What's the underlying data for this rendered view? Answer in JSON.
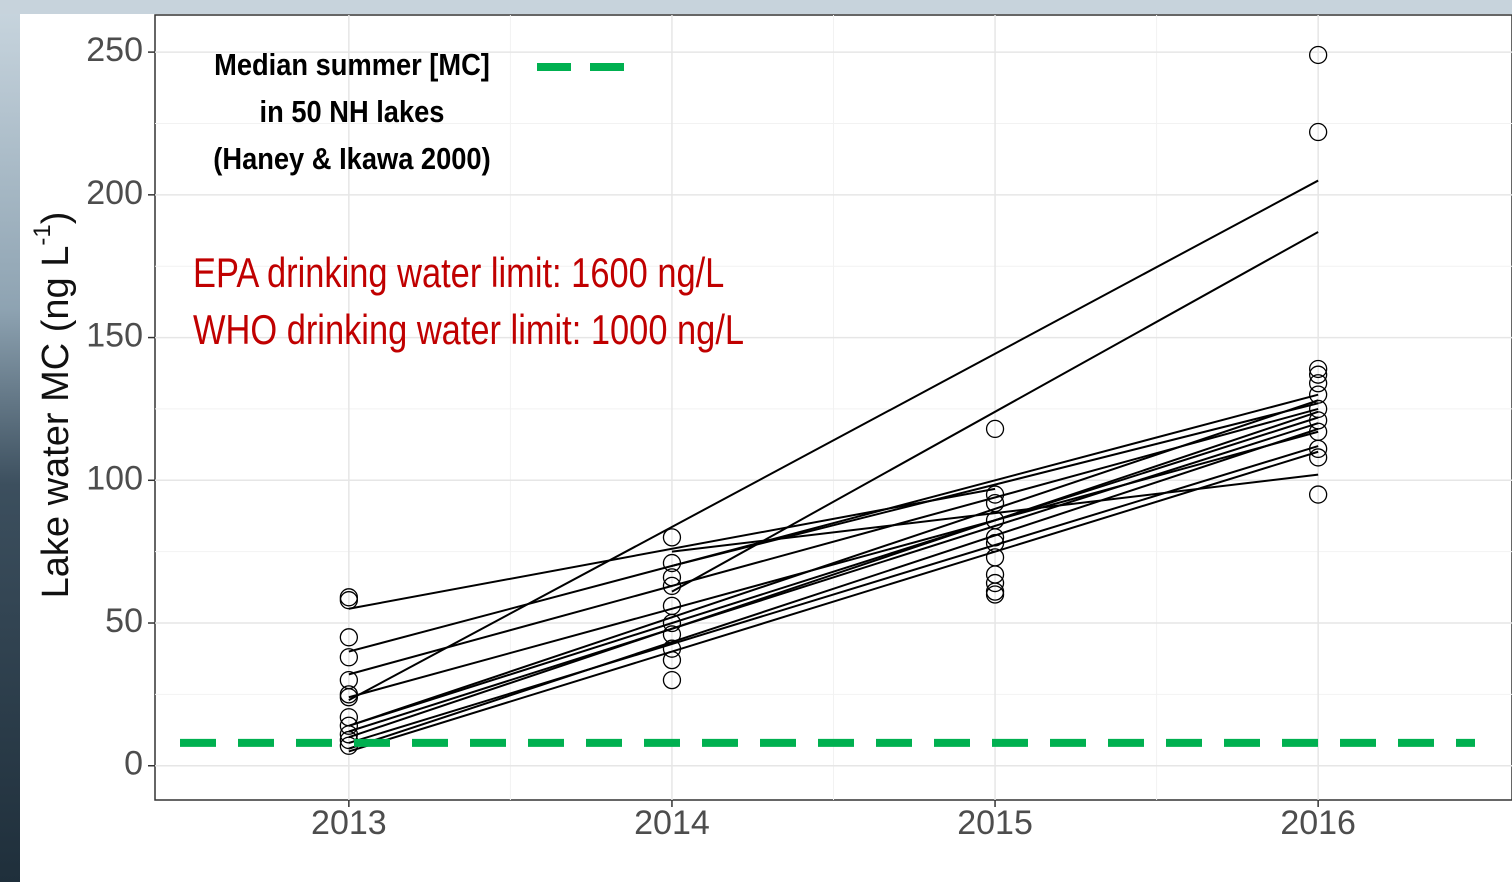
{
  "chart_data": {
    "type": "scatter",
    "y_label": {
      "text": "Lake water MC (ng L",
      "superscript": "-1",
      "close": ")"
    },
    "xlim": [
      2012.4,
      2016.6
    ],
    "ylim": [
      -12,
      263
    ],
    "xticks": [
      2013,
      2014,
      2015,
      2016
    ],
    "yticks": [
      0,
      50,
      100,
      150,
      200,
      250
    ],
    "grid": true,
    "minor_grid": true,
    "points": {
      "color": "#000000",
      "x": [
        2013,
        2013,
        2013,
        2013,
        2013,
        2013,
        2013,
        2013,
        2013,
        2013,
        2013,
        2013,
        2014,
        2014,
        2014,
        2014,
        2014,
        2014,
        2014,
        2014,
        2014,
        2014,
        2015,
        2015,
        2015,
        2015,
        2015,
        2015,
        2015,
        2015,
        2015,
        2015,
        2015,
        2016,
        2016,
        2016,
        2016,
        2016,
        2016,
        2016,
        2016,
        2016,
        2016,
        2016,
        2016
      ],
      "values": [
        59,
        58,
        45,
        38,
        30,
        25,
        24,
        17,
        14,
        11,
        9,
        7,
        80,
        71,
        66,
        63,
        56,
        50,
        46,
        41,
        37,
        30,
        118,
        95,
        92,
        86,
        80,
        78,
        73,
        67,
        64,
        61,
        60,
        249,
        222,
        139,
        137,
        134,
        130,
        125,
        121,
        117,
        111,
        108,
        95
      ]
    },
    "fit_lines": [
      {
        "x": [
          2013,
          2016
        ],
        "values": [
          23,
          205
        ]
      },
      {
        "x": [
          2014,
          2016
        ],
        "values": [
          61,
          187
        ]
      },
      {
        "x": [
          2013,
          2015
        ],
        "values": [
          55,
          97
        ]
      },
      {
        "x": [
          2013,
          2016
        ],
        "values": [
          40,
          130
        ]
      },
      {
        "x": [
          2013,
          2016
        ],
        "values": [
          32,
          125
        ]
      },
      {
        "x": [
          2013,
          2016
        ],
        "values": [
          24,
          117
        ]
      },
      {
        "x": [
          2013,
          2016
        ],
        "values": [
          14,
          122
        ]
      },
      {
        "x": [
          2013,
          2016
        ],
        "values": [
          12,
          120
        ]
      },
      {
        "x": [
          2013,
          2016
        ],
        "values": [
          10,
          124
        ]
      },
      {
        "x": [
          2013,
          2016
        ],
        "values": [
          8,
          112
        ]
      },
      {
        "x": [
          2013,
          2016
        ],
        "values": [
          6,
          118
        ]
      },
      {
        "x": [
          2013,
          2016
        ],
        "values": [
          14,
          128
        ]
      },
      {
        "x": [
          2014,
          2016
        ],
        "values": [
          75,
          102
        ]
      },
      {
        "x": [
          2014,
          2016
        ],
        "values": [
          70,
          127
        ]
      },
      {
        "x": [
          2013,
          2016
        ],
        "values": [
          5,
          110
        ]
      }
    ],
    "line_color": "#000000",
    "reference_line": {
      "label_lines": [
        "Median summer [MC]",
        "in 50 NH lakes",
        "(Haney & Ikawa 2000)"
      ],
      "value": 8,
      "color": "#00b050"
    },
    "annotations": [
      {
        "text": "EPA drinking water limit: 1600 ng/L",
        "color": "#c00000"
      },
      {
        "text": "WHO drinking water limit: 1000 ng/L",
        "color": "#c00000"
      }
    ]
  }
}
